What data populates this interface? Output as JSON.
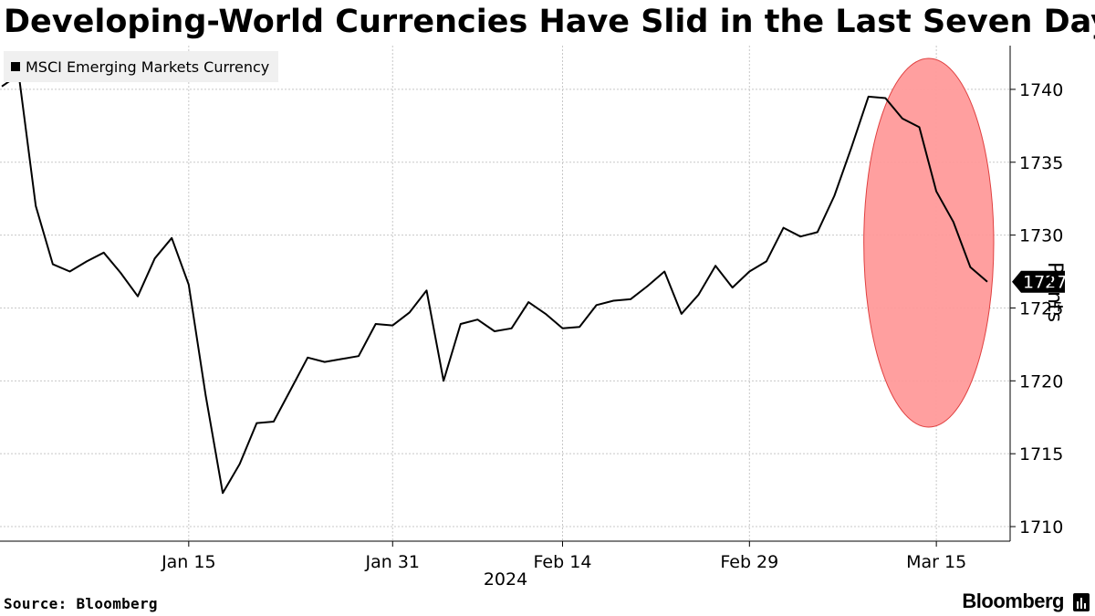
{
  "title": "Developing-World Currencies Have Slid in the Last Seven Days",
  "legend": {
    "label": "MSCI Emerging Markets Currency",
    "color": "#000000"
  },
  "source": "Source: Bloomberg",
  "brand": "Bloomberg",
  "highlight_color": "#ff9a9a",
  "chart_data": {
    "type": "line",
    "title": "Developing-World Currencies Have Slid in the Last Seven Days",
    "xlabel": "2024",
    "ylabel": "Points",
    "ylim": [
      1709,
      1743
    ],
    "yticks": [
      1710,
      1715,
      1720,
      1725,
      1730,
      1735,
      1740
    ],
    "xticks": [
      {
        "label": "Jan 15",
        "index": 11
      },
      {
        "label": "Jan 31",
        "index": 23
      },
      {
        "label": "Feb 14",
        "index": 33
      },
      {
        "label": "Feb 29",
        "index": 44
      },
      {
        "label": "Mar 15",
        "index": 55
      }
    ],
    "last_value_label": "1727",
    "highlight": {
      "shape": "ellipse",
      "from_index": 51,
      "to_index": 58,
      "note": "last seven days"
    },
    "series": [
      {
        "name": "MSCI Emerging Markets Currency",
        "values": [
          1740.2,
          1741.0,
          1732.0,
          1728.0,
          1727.5,
          1728.2,
          1728.8,
          1727.4,
          1725.8,
          1728.4,
          1729.8,
          1726.6,
          1719.0,
          1712.3,
          1714.3,
          1717.1,
          1717.2,
          1719.4,
          1721.6,
          1721.3,
          1721.5,
          1721.7,
          1723.9,
          1723.8,
          1724.7,
          1726.2,
          1720.0,
          1723.9,
          1724.2,
          1723.4,
          1723.6,
          1725.4,
          1724.6,
          1723.6,
          1723.7,
          1725.2,
          1725.5,
          1725.6,
          1726.5,
          1727.5,
          1724.6,
          1725.9,
          1727.9,
          1726.4,
          1727.5,
          1728.2,
          1730.5,
          1729.9,
          1730.2,
          1732.7,
          1736.0,
          1739.5,
          1739.4,
          1738.0,
          1737.4,
          1733.0,
          1730.9,
          1727.8,
          1726.8
        ]
      }
    ]
  }
}
